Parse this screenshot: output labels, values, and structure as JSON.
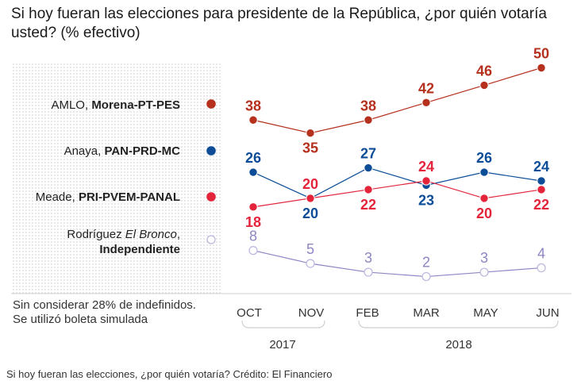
{
  "title": "Si hoy fueran las elecciones para presidente de la República, ¿por quién votaría usted? (% efectivo)",
  "note": [
    "Sin considerar 28% de indefinidos.",
    "Se utilizó boleta simulada"
  ],
  "caption": "Si hoy fueran las elecciones, ¿por quién votaría? Crédito: El Financiero",
  "legend": [
    {
      "plain": "AMLO, ",
      "bold": "Morena-PT-PES"
    },
    {
      "plain": "Anaya, ",
      "bold": "PAN-PRD-MC"
    },
    {
      "plain": "Meade, ",
      "bold": "PRI-PVEM-PANAL"
    },
    {
      "plain": "Rodríguez ",
      "italic": "El Bronco",
      "plain2": ",",
      "bold": "Independiente"
    }
  ],
  "chart_data": {
    "type": "line",
    "categories": [
      "OCT",
      "NOV",
      "FEB",
      "MAR",
      "MAY",
      "JUN"
    ],
    "year_labels": [
      "2017",
      "2018"
    ],
    "grid": false,
    "legend_position": "left",
    "series": [
      {
        "name": "AMLO, Morena-PT-PES",
        "color": "#b5311e",
        "values": [
          38,
          35,
          38,
          42,
          46,
          50
        ]
      },
      {
        "name": "Anaya, PAN-PRD-MC",
        "color": "#0d4d97",
        "values": [
          26,
          20,
          27,
          23,
          26,
          24
        ]
      },
      {
        "name": "Meade, PRI-PVEM-PANAL",
        "color": "#e3243b",
        "values": [
          18,
          20,
          22,
          24,
          20,
          22
        ]
      },
      {
        "name": "Rodríguez El Bronco, Independiente",
        "color": "#8c86c4",
        "values": [
          8,
          5,
          3,
          2,
          3,
          4
        ]
      }
    ]
  }
}
